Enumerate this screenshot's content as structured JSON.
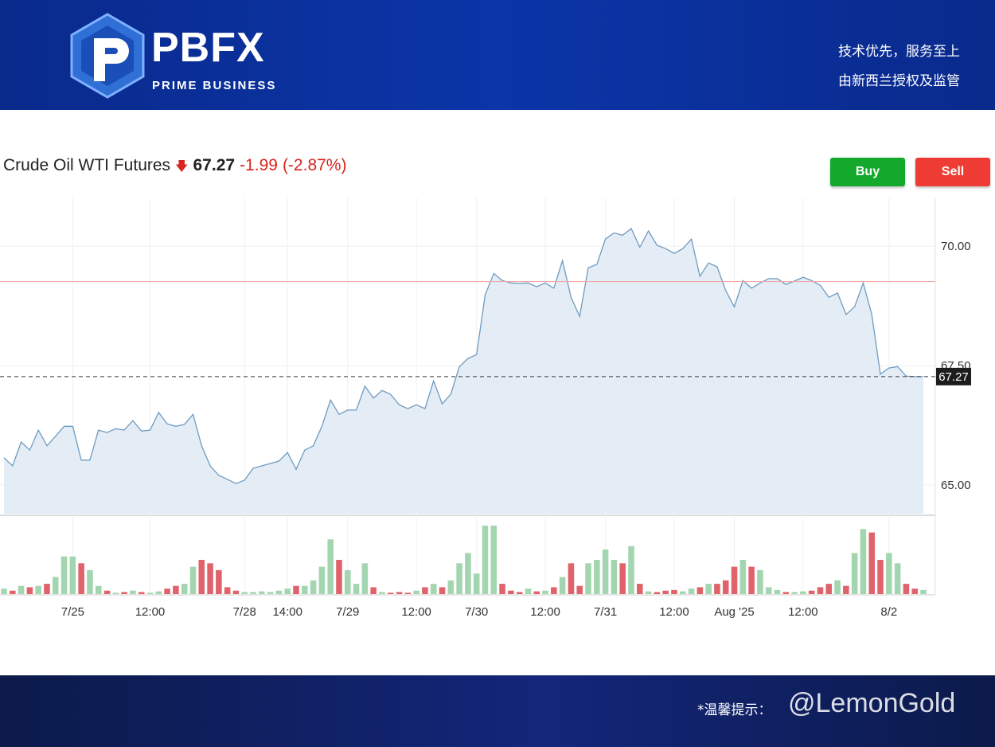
{
  "header": {
    "brand": "PBFX",
    "brand_sub": "PRIME BUSINESS",
    "slogan_1": "技术优先，服务至上",
    "slogan_2": "由新西兰授权及监管"
  },
  "buttons": {
    "buy": "Buy",
    "sell": "Sell"
  },
  "footer": {
    "notice": "*温馨提示：",
    "watermark": "@LemonGold"
  },
  "chart_data": {
    "type": "line",
    "title": "Crude Oil WTI Futures",
    "last_price": {
      "value": 67.27,
      "label": "67.27"
    },
    "change": "-1.99",
    "change_pct": "(-2.87%)",
    "reference_line": 69.26,
    "color": "#6f9bc0",
    "fill": "#e4edf5",
    "reference_color": "#f0a8a8",
    "ylim": [
      64.4,
      71.02
    ],
    "yticks": [
      {
        "value": 65,
        "label": "65.00"
      },
      {
        "value": 67.5,
        "label": "67.50"
      },
      {
        "value": 70,
        "label": "70.00"
      }
    ],
    "xlim": [
      0,
      107
    ],
    "xticks": [
      {
        "value": 8,
        "label": "7/25"
      },
      {
        "value": 17,
        "label": "12:00"
      },
      {
        "value": 28,
        "label": "7/28"
      },
      {
        "value": 33,
        "label": "14:00"
      },
      {
        "value": 40,
        "label": "7/29"
      },
      {
        "value": 48,
        "label": "12:00"
      },
      {
        "value": 55,
        "label": "7/30"
      },
      {
        "value": 63,
        "label": "12:00"
      },
      {
        "value": 70,
        "label": "7/31"
      },
      {
        "value": 78,
        "label": "12:00"
      },
      {
        "value": 85,
        "label": "Aug '25"
      },
      {
        "value": 93,
        "label": "12:00"
      },
      {
        "value": 103,
        "label": "8/2"
      }
    ],
    "series": [
      {
        "name": "Price",
        "values": [
          65.57,
          65.4,
          65.9,
          65.73,
          66.15,
          65.82,
          66.02,
          66.23,
          66.23,
          65.52,
          65.52,
          66.15,
          66.1,
          66.18,
          66.15,
          66.35,
          66.13,
          66.15,
          66.52,
          66.28,
          66.23,
          66.27,
          66.48,
          65.82,
          65.4,
          65.2,
          65.12,
          65.03,
          65.1,
          65.35,
          65.4,
          65.45,
          65.5,
          65.68,
          65.33,
          65.73,
          65.82,
          66.23,
          66.78,
          66.48,
          66.57,
          66.57,
          67.07,
          66.82,
          66.98,
          66.9,
          66.68,
          66.6,
          66.68,
          66.6,
          67.18,
          66.7,
          66.9,
          67.48,
          67.65,
          67.73,
          68.98,
          69.43,
          69.28,
          69.23,
          69.22,
          69.23,
          69.15,
          69.23,
          69.12,
          69.7,
          68.93,
          68.53,
          69.55,
          69.62,
          70.15,
          70.28,
          70.23,
          70.37,
          69.98,
          70.32,
          70.02,
          69.95,
          69.85,
          69.95,
          70.15,
          69.37,
          69.65,
          69.57,
          69.07,
          68.73,
          69.28,
          69.12,
          69.23,
          69.32,
          69.32,
          69.2,
          69.27,
          69.35,
          69.28,
          69.18,
          68.93,
          69.02,
          68.57,
          68.73,
          69.23,
          68.57,
          67.32,
          67.45,
          67.48,
          67.28,
          67.27,
          67.27
        ]
      },
      {
        "name": "Volume",
        "up_color": "#a3d6b0",
        "down_color": "#e0636b",
        "vlim": [
          0,
          100
        ],
        "values": [
          8,
          5,
          12,
          10,
          12,
          15,
          25,
          55,
          55,
          45,
          35,
          12,
          5,
          2,
          3,
          5,
          3,
          2,
          4,
          8,
          12,
          15,
          40,
          50,
          45,
          35,
          10,
          5,
          3,
          3,
          4,
          3,
          5,
          8,
          12,
          12,
          20,
          40,
          80,
          50,
          35,
          15,
          45,
          10,
          3,
          2,
          3,
          2,
          5,
          10,
          15,
          10,
          20,
          45,
          60,
          30,
          100,
          100,
          15,
          5,
          3,
          8,
          4,
          5,
          10,
          25,
          45,
          12,
          45,
          50,
          65,
          50,
          45,
          70,
          15,
          4,
          3,
          5,
          6,
          4,
          8,
          10,
          15,
          15,
          20,
          40,
          50,
          40,
          35,
          10,
          6,
          3,
          3,
          4,
          5,
          10,
          15,
          20,
          12,
          60,
          95,
          90,
          50,
          60,
          45,
          15,
          8,
          6
        ]
      }
    ]
  }
}
